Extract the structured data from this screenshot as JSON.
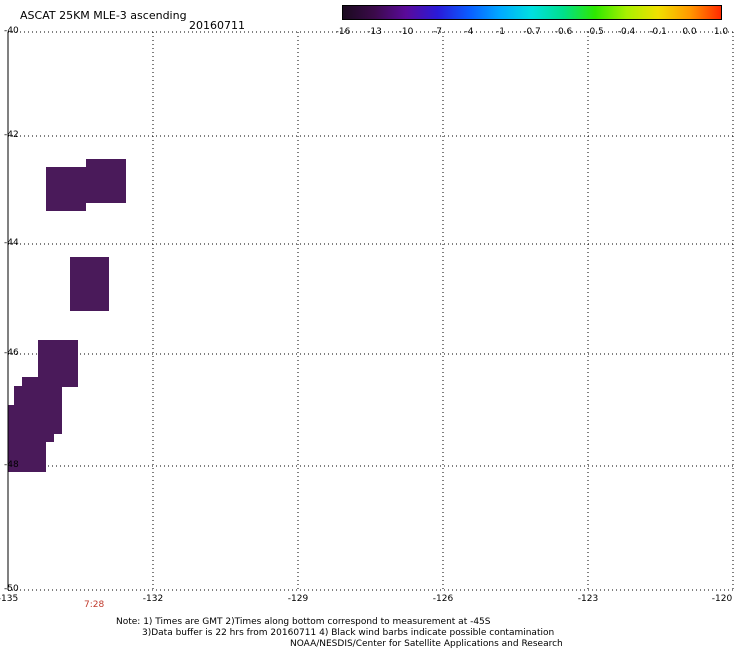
{
  "header": {
    "title": "ASCAT 25KM MLE-3 ascending",
    "date": "20160711"
  },
  "colorbar": {
    "labels": [
      "-16",
      "-13",
      "-10",
      "-7",
      "-4",
      "-1",
      "-0.7",
      "-0.6",
      "-0.5",
      "-0.4",
      "-0.1",
      "0.0",
      "1.0"
    ],
    "colors": [
      "#1a0a1f",
      "#3b0a4a",
      "#5a0a9a",
      "#2a1ad8",
      "#0a5cff",
      "#00aaff",
      "#00e0e0",
      "#00e08a",
      "#2ee800",
      "#a8f000",
      "#f0e000",
      "#ff9a00",
      "#ff2a00"
    ]
  },
  "map": {
    "lat_ticks": [
      "-40",
      "-42",
      "-44",
      "-46",
      "-48",
      "-50"
    ],
    "lon_ticks": [
      "-135",
      "-132",
      "-129",
      "-126",
      "-123",
      "-120"
    ],
    "cell_color": "#4a1a5a",
    "time_label": "7:28"
  },
  "footer": {
    "note_line1": "Note: 1) Times are GMT 2)Times along bottom correspond to measurement at -45S",
    "note_line2": "3)Data buffer is 22 hrs from 20160711 4) Black wind barbs indicate possible contamination",
    "note_line3": "NOAA/NESDIS/Center for Satellite Applications and Research"
  }
}
